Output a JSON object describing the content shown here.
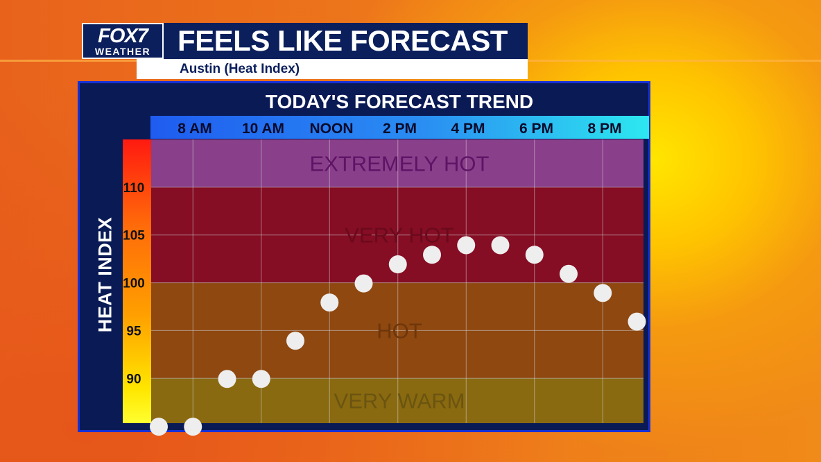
{
  "header": {
    "logo_top": "FOX7",
    "logo_bottom": "WEATHER",
    "title": "FEELS LIKE FORECAST",
    "subtitle": "Austin (Heat Index)"
  },
  "chart_data": {
    "type": "scatter",
    "title": "TODAY'S FORECAST TREND",
    "ylabel": "HEAT INDEX",
    "xlabel": "",
    "x_tick_labels": [
      "8 AM",
      "10 AM",
      "NOON",
      "2 PM",
      "4 PM",
      "6 PM",
      "8 PM"
    ],
    "y_ticks": [
      90,
      95,
      100,
      105,
      110
    ],
    "ylim": [
      85.3,
      115
    ],
    "grid": true,
    "x": [
      "8 AM",
      "9 AM",
      "10 AM",
      "11 AM",
      "NOON",
      "1 PM",
      "2 PM",
      "3 PM",
      "4 PM",
      "5 PM",
      "6 PM",
      "7 PM",
      "8 PM",
      "9 PM",
      "10 PM"
    ],
    "values": [
      85,
      85,
      90,
      90,
      94,
      98,
      100,
      102,
      103,
      104,
      104,
      103,
      101,
      99,
      96
    ],
    "bands": [
      {
        "label": "EXTREMELY HOT",
        "from": 110,
        "to": 115,
        "color": "#8a3f8a",
        "text_color": "#5e1366"
      },
      {
        "label": "VERY HOT",
        "from": 100,
        "to": 110,
        "color": "#850d24",
        "text_color": "#6a0a1c"
      },
      {
        "label": "HOT",
        "from": 90,
        "to": 100,
        "color": "#8e4810",
        "text_color": "#6e360a"
      },
      {
        "label": "VERY WARM",
        "from": 85.3,
        "to": 90,
        "color": "#8a6a10",
        "text_color": "#6a5410"
      }
    ],
    "point_color": "#eeeeee"
  }
}
